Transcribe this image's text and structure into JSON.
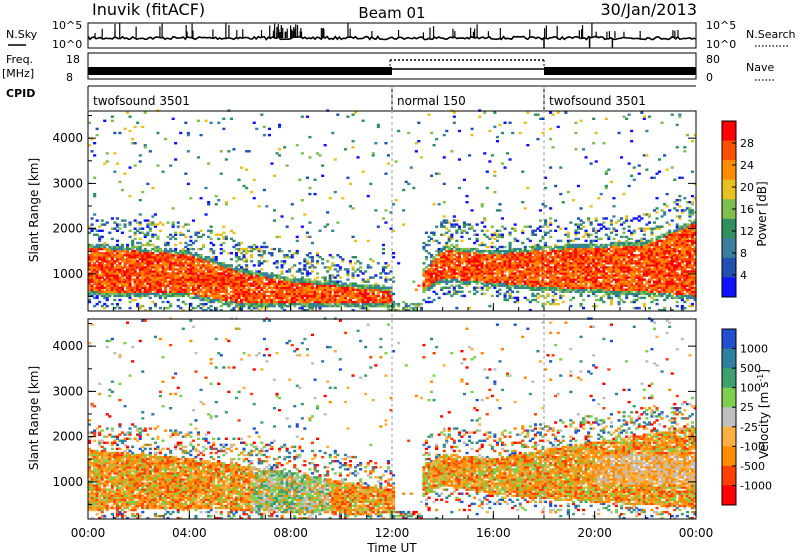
{
  "header": {
    "station": "Inuvik (fitACF)",
    "beam": "Beam 01",
    "date": "30/Jan/2013"
  },
  "top_panel": {
    "nsky_label": "N.Sky",
    "nsky_ticks": [
      "10^5",
      "10^0"
    ],
    "nsearch_label": "N.Search",
    "freq_label": "Freq.",
    "freq_unit": "[MHz]",
    "freq_ticks": [
      "18",
      "8"
    ],
    "nave_label": "Nave",
    "nave_ticks": [
      "80",
      "0"
    ],
    "cpid_label": "CPID",
    "cpid_segments": [
      {
        "label": "twofsound 3501",
        "start_hour": 0,
        "end_hour": 12
      },
      {
        "label": "normal 150",
        "start_hour": 12,
        "end_hour": 18
      },
      {
        "label": "twofsound 3501",
        "start_hour": 18,
        "end_hour": 24
      }
    ]
  },
  "colors": {
    "power_scale": [
      "#1010ff",
      "#2050b0",
      "#3a7fa0",
      "#2f8f5f",
      "#7fbf4f",
      "#e8c020",
      "#ff8c00",
      "#ff5000",
      "#ff0000"
    ],
    "velocity_scale": [
      "#2050d0",
      "#2f7fa0",
      "#3f9f6f",
      "#7fcf4f",
      "#bfbfbf",
      "#ffb040",
      "#ff8c00",
      "#ff4000",
      "#ff0000"
    ]
  },
  "chart_data": [
    {
      "type": "heatmap",
      "title": "Power",
      "xlabel": "",
      "ylabel": "Slant Range [km]",
      "x_ticks": [
        "00:00",
        "04:00",
        "08:00",
        "12:00",
        "16:00",
        "20:00",
        "00:00"
      ],
      "xlim_hours": [
        0,
        24
      ],
      "y_ticks": [
        1000,
        2000,
        3000,
        4000
      ],
      "ylim": [
        180,
        4600
      ],
      "colorbar_label": "Power [dB]",
      "colorbar_ticks": [
        "4",
        "8",
        "12",
        "16",
        "20",
        "24",
        "28"
      ],
      "colorbar_range": [
        0,
        30
      ],
      "dominant_band": [
        {
          "hour": 0,
          "low": 500,
          "high": 1650
        },
        {
          "hour": 4,
          "low": 450,
          "high": 1500
        },
        {
          "hour": 6,
          "low": 250,
          "high": 1100
        },
        {
          "hour": 8,
          "low": 250,
          "high": 900
        },
        {
          "hour": 11.9,
          "low": 250,
          "high": 700
        },
        {
          "hour": 12.1,
          "low": 200,
          "high": 300
        },
        {
          "hour": 14,
          "low": 800,
          "high": 1600
        },
        {
          "hour": 16,
          "low": 700,
          "high": 1500
        },
        {
          "hour": 18,
          "low": 600,
          "high": 1600
        },
        {
          "hour": 22,
          "low": 500,
          "high": 1700
        },
        {
          "hour": 24,
          "low": 400,
          "high": 2200
        }
      ]
    },
    {
      "type": "heatmap",
      "title": "Velocity",
      "xlabel": "Time UT",
      "ylabel": "Slant Range [km]",
      "x_ticks": [
        "00:00",
        "04:00",
        "08:00",
        "12:00",
        "16:00",
        "20:00",
        "00:00"
      ],
      "xlim_hours": [
        0,
        24
      ],
      "y_ticks": [
        1000,
        2000,
        3000,
        4000
      ],
      "ylim": [
        180,
        4600
      ],
      "colorbar_label": "Velocity [m s",
      "colorbar_label_sup": "-1",
      "colorbar_label_end": "]",
      "colorbar_ticks": [
        "1000",
        "500",
        "100",
        "25",
        "-25",
        "-100",
        "-500",
        "-1000"
      ],
      "dominant_band": [
        {
          "hour": 0,
          "low": 350,
          "high": 1700
        },
        {
          "hour": 4,
          "low": 400,
          "high": 1500
        },
        {
          "hour": 8,
          "low": 300,
          "high": 1200
        },
        {
          "hour": 11.9,
          "low": 250,
          "high": 800
        },
        {
          "hour": 14,
          "low": 900,
          "high": 1600
        },
        {
          "hour": 16,
          "low": 700,
          "high": 1500
        },
        {
          "hour": 18,
          "low": 600,
          "high": 1700
        },
        {
          "hour": 24,
          "low": 400,
          "high": 2200
        }
      ]
    }
  ]
}
